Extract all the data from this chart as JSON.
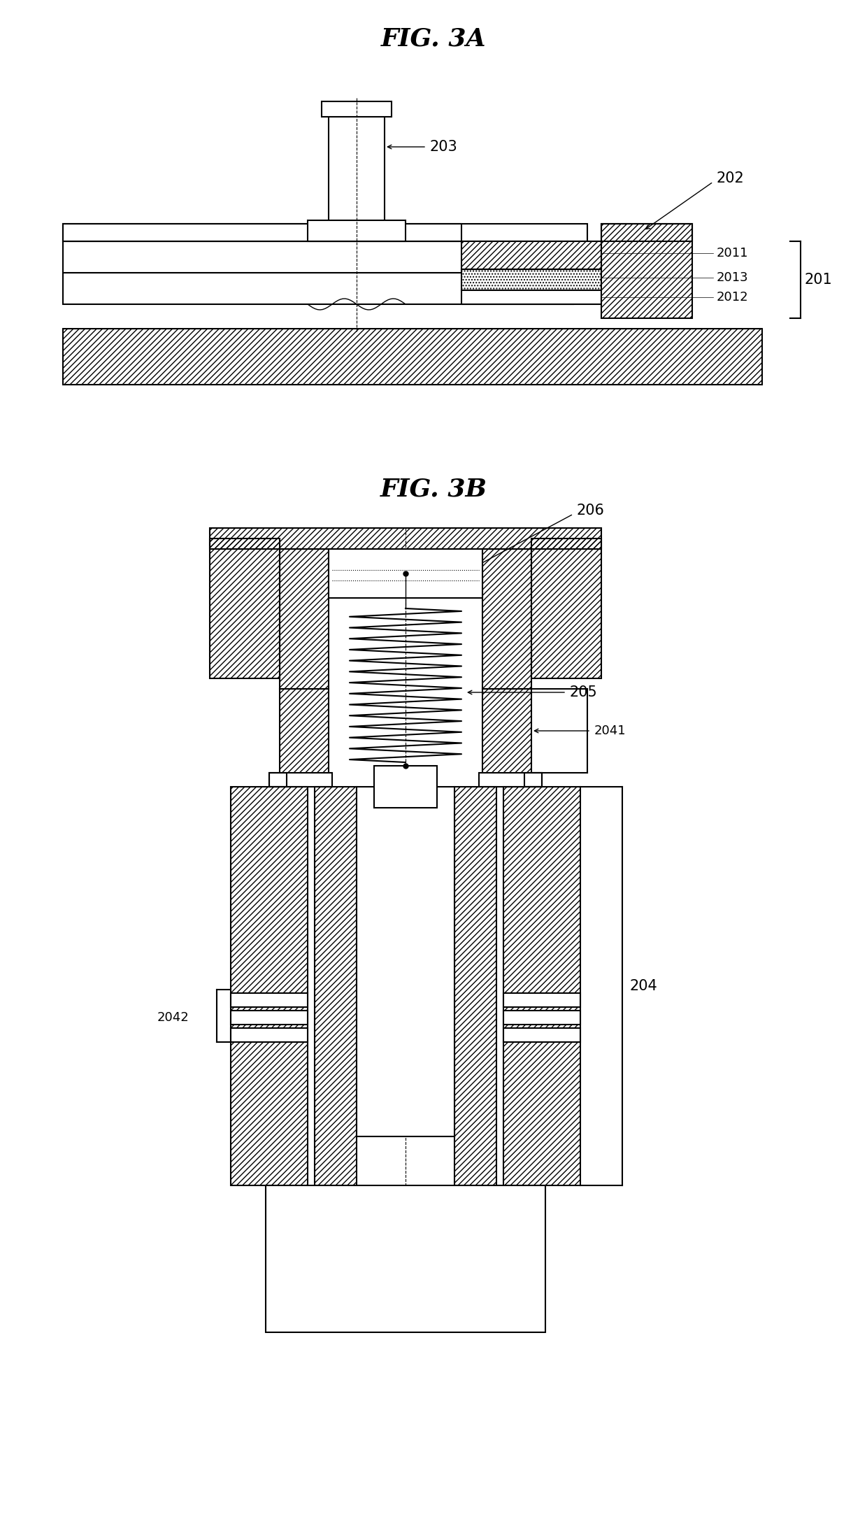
{
  "fig_title_3A": "FIG. 3A",
  "fig_title_3B": "FIG. 3B",
  "bg_color": "#ffffff",
  "label_203": "203",
  "label_202": "202",
  "label_2011": "2011",
  "label_2013": "2013",
  "label_2012": "2012",
  "label_201": "201",
  "label_206": "206",
  "label_205": "205",
  "label_2041": "2041",
  "label_204": "204",
  "label_2042": "2042",
  "lw": 1.5,
  "lw_thin": 1.0,
  "fontsize_title": 26,
  "fontsize_label": 15,
  "fontsize_small": 13
}
